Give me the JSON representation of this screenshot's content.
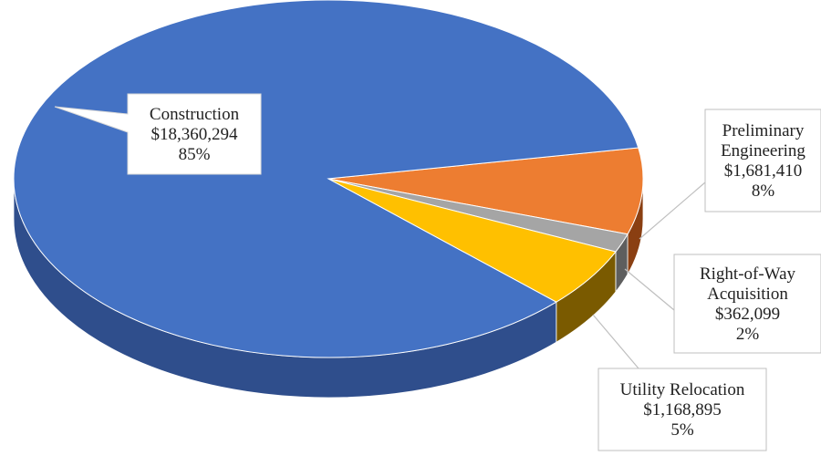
{
  "chart_data": {
    "type": "pie",
    "title": "",
    "style": "3d-exploded-none",
    "slices": [
      {
        "label": "Construction",
        "value": 18360294,
        "value_text": "$18,360,294",
        "percent_text": "85%",
        "color": "#4472C4",
        "side_color": "#2F4E8C"
      },
      {
        "label": "Preliminary Engineering",
        "value": 1681410,
        "value_text": "$1,681,410",
        "percent_text": "8%",
        "color": "#ED7D31",
        "side_color": "#8A3F12"
      },
      {
        "label": "Right-of-Way Acquisition",
        "value": 362099,
        "value_text": "$362,099",
        "percent_text": "2%",
        "color": "#A5A5A5",
        "side_color": "#5E5E5E"
      },
      {
        "label": "Utility Relocation",
        "value": 1168895,
        "value_text": "$1,168,895",
        "percent_text": "5%",
        "color": "#FFC000",
        "side_color": "#7A5A00"
      }
    ],
    "callout_lines": {
      "Construction": [
        "Construction",
        "$18,360,294",
        "85%"
      ],
      "Preliminary Engineering": [
        "Preliminary",
        "Engineering",
        "$1,681,410",
        "8%"
      ],
      "Right-of-Way Acquisition": [
        "Right-of-Way",
        "Acquisition",
        "$362,099",
        "2%"
      ],
      "Utility Relocation": [
        "Utility Relocation",
        "$1,168,895",
        "5%"
      ]
    }
  }
}
